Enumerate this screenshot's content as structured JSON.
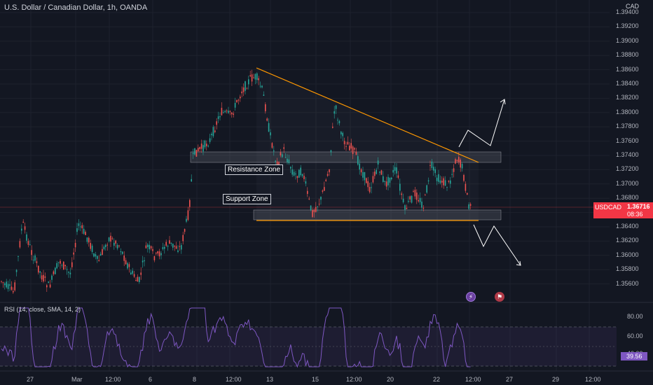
{
  "header": {
    "symbol_title": "U.S. Dollar / Canadian Dollar, 1h, OANDA",
    "currency": "CAD"
  },
  "price_axis": {
    "ticks": [
      "1.39400",
      "1.39200",
      "1.39000",
      "1.38800",
      "1.38600",
      "1.38400",
      "1.38200",
      "1.38000",
      "1.37800",
      "1.37600",
      "1.37400",
      "1.37200",
      "1.37000",
      "1.36800",
      "1.36600",
      "1.36400",
      "1.36200",
      "1.36000",
      "1.35800",
      "1.35600"
    ]
  },
  "current_price": {
    "symbol": "USDCAD",
    "price": "1.36716",
    "countdown": "08:36",
    "color": "#f23645"
  },
  "annotations": {
    "resistance_label": "Resistance Zone",
    "support_label": "Support Zone"
  },
  "rsi": {
    "title": "RSI (14, close, SMA, 14, 2)",
    "ticks": [
      "80.00",
      "60.00",
      "40.00"
    ],
    "value": "39.56",
    "color": "#7e57c2"
  },
  "time_axis": {
    "ticks": [
      "27",
      "Mar",
      "12:00",
      "6",
      "8",
      "12:00",
      "13",
      "15",
      "12:00",
      "20",
      "22",
      "12:00",
      "27",
      "29",
      "12:00"
    ]
  },
  "icons": {
    "event_icon": "lightning-icon",
    "flag_icon": "flag-icon"
  }
}
